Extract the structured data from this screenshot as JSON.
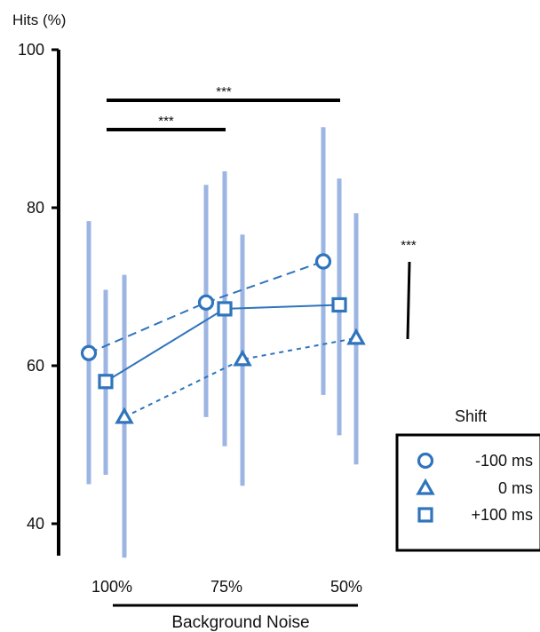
{
  "chart_data": {
    "type": "scatter",
    "ylabel": "Hits (%)",
    "xlabel": "Background Noise",
    "categories": [
      "100%",
      "75%",
      "50%"
    ],
    "y_ticks": [
      "40",
      "60",
      "80",
      "100"
    ],
    "ylim": [
      37,
      102
    ],
    "legend_title": "Shift",
    "legend_position": "right",
    "series": [
      {
        "name": "-100 ms",
        "marker": "circle",
        "line_style": "dashed",
        "values": [
          61.6,
          68.0,
          73.2
        ],
        "error_low": [
          45.0,
          53.5,
          56.3
        ],
        "error_high": [
          78.3,
          82.9,
          90.2
        ]
      },
      {
        "name": "0 ms",
        "marker": "triangle",
        "line_style": "dotted-dashed",
        "values": [
          53.5,
          60.8,
          63.5
        ],
        "error_low": [
          35.7,
          44.8,
          47.5
        ],
        "error_high": [
          71.5,
          76.6,
          79.3
        ]
      },
      {
        "name": "+100 ms",
        "marker": "square",
        "line_style": "solid",
        "values": [
          58.0,
          67.2,
          67.7
        ],
        "error_low": [
          46.2,
          49.8,
          51.2
        ],
        "error_high": [
          69.6,
          84.6,
          83.7
        ]
      }
    ],
    "significance": [
      {
        "label": "***",
        "from": "100%",
        "to": "50%"
      },
      {
        "label": "***",
        "from": "100%",
        "to": "75%"
      },
      {
        "label": "***",
        "from": "-100 ms",
        "to": "0 ms"
      }
    ],
    "colors": {
      "marker": "#2f74bc",
      "error_bar": "#9db5e3",
      "axis": "#000000"
    }
  }
}
